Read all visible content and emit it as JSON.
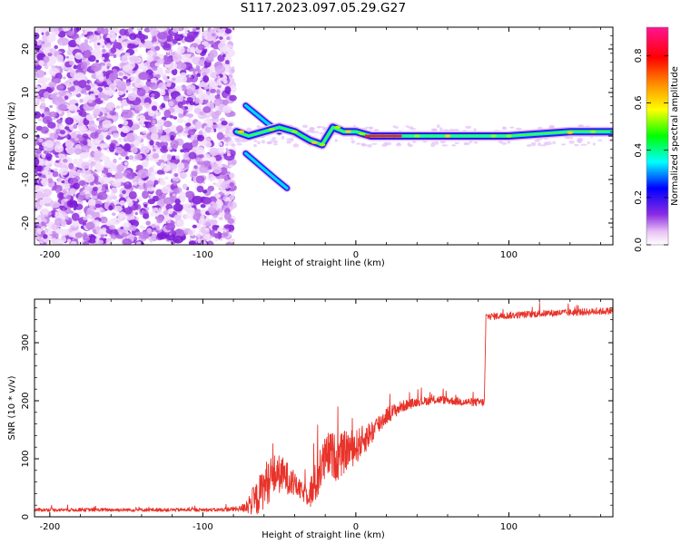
{
  "title": "S117.2023.097.05.29.G27",
  "chart_data": [
    {
      "type": "heatmap",
      "title": "",
      "xlabel": "Height of straight line (km)",
      "ylabel": "Frequency (Hz)",
      "xlim": [
        -210,
        168
      ],
      "ylim": [
        -25,
        25
      ],
      "xticks": [
        -200,
        -100,
        0,
        100
      ],
      "yticks": [
        -20,
        -10,
        0,
        10,
        20
      ],
      "colorbar": {
        "label": "Normalized spectral amplitude",
        "ticks": [
          "0.0",
          "0.2",
          "0.4",
          "0.6",
          "0.8"
        ],
        "range": [
          0,
          0.92
        ],
        "colormap": [
          "#ffffff",
          "#e9c2f5",
          "#8a2be2",
          "#0000ff",
          "#00ffff",
          "#00ff00",
          "#ffff00",
          "#ff8c00",
          "#ff0000",
          "#ff1493"
        ]
      },
      "regions": [
        {
          "name": "noise",
          "x_range": [
            -210,
            -80
          ],
          "freq_range": [
            -25,
            25
          ],
          "amplitude": [
            0.0,
            0.15
          ]
        },
        {
          "name": "branch-upper",
          "points": [
            [
              -72,
              7
            ],
            [
              -65,
              5
            ],
            [
              -58,
              3
            ],
            [
              -50,
              1
            ]
          ]
        },
        {
          "name": "branch-lower",
          "points": [
            [
              -72,
              -4
            ],
            [
              -62,
              -7
            ],
            [
              -52,
              -10
            ],
            [
              -45,
              -12
            ]
          ]
        },
        {
          "name": "signal",
          "points": [
            [
              -78,
              1
            ],
            [
              -70,
              0
            ],
            [
              -60,
              1
            ],
            [
              -50,
              2
            ],
            [
              -40,
              1
            ],
            [
              -30,
              -1
            ],
            [
              -22,
              -2
            ],
            [
              -15,
              2
            ],
            [
              -8,
              1
            ],
            [
              0,
              1
            ],
            [
              10,
              0
            ],
            [
              30,
              0
            ],
            [
              60,
              0
            ],
            [
              100,
              0
            ],
            [
              140,
              1
            ],
            [
              168,
              1
            ]
          ],
          "amplitude_peak": 0.92
        }
      ],
      "grid": false
    },
    {
      "type": "line",
      "title": "",
      "xlabel": "Height of straight line (km)",
      "ylabel": "SNR (10 * v/v)",
      "xlim": [
        -210,
        168
      ],
      "ylim": [
        0,
        375
      ],
      "xticks": [
        -200,
        -100,
        0,
        100
      ],
      "yticks": [
        0,
        100,
        200,
        300
      ],
      "series": [
        {
          "color": "#e8332a",
          "x": [
            -210,
            -180,
            -150,
            -120,
            -90,
            -75,
            -65,
            -58,
            -52,
            -46,
            -40,
            -34,
            -28,
            -22,
            -17,
            -12,
            -6,
            0,
            6,
            12,
            20,
            30,
            40,
            55,
            70,
            84,
            85,
            100,
            120,
            140,
            168
          ],
          "values": [
            12,
            12,
            12,
            12,
            12,
            14,
            30,
            60,
            75,
            70,
            55,
            40,
            45,
            90,
            110,
            100,
            115,
            120,
            135,
            150,
            175,
            190,
            198,
            202,
            198,
            197,
            345,
            347,
            350,
            352,
            355
          ],
          "noise": [
            6,
            6,
            6,
            6,
            6,
            10,
            60,
            80,
            70,
            60,
            40,
            30,
            70,
            80,
            80,
            80,
            70,
            60,
            50,
            40,
            30,
            20,
            15,
            14,
            14,
            14,
            12,
            12,
            12,
            12,
            12
          ]
        }
      ],
      "grid": false
    }
  ]
}
